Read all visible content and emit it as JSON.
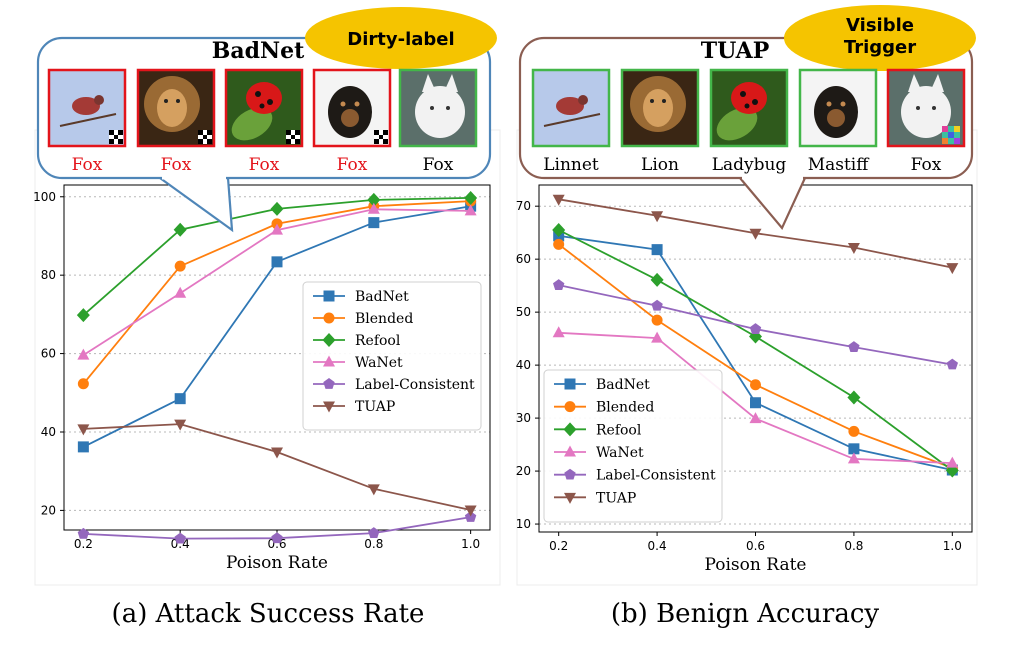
{
  "colors": {
    "BadNet": "#2f77b4",
    "Blended": "#ff7f0e",
    "Refool": "#2ca02c",
    "WaNet": "#e377c2",
    "Label-Consistent": "#9467bd",
    "TUAP": "#8c564b",
    "frame_left": "#4f86b8",
    "frame_right": "#8b5e52",
    "badge": "#f5c400",
    "red": "#e3141b",
    "green": "#43b649"
  },
  "chart_data": [
    {
      "type": "line",
      "title": "",
      "caption": "(a) Attack Success Rate",
      "xlabel": "Poison Rate",
      "ylabel": "",
      "x": [
        0.2,
        0.4,
        0.6,
        0.8,
        1.0
      ],
      "x_ticks": [
        "0.2",
        "0.4",
        "0.6",
        "0.8",
        "1.0"
      ],
      "ylim": [
        15,
        103
      ],
      "y_ticks": [
        20,
        40,
        60,
        80,
        100
      ],
      "grid": "horizontal dotted",
      "legend": "center-right",
      "series": [
        {
          "name": "BadNet",
          "marker": "square",
          "values": [
            36.2,
            48.5,
            83.4,
            93.4,
            97.6
          ]
        },
        {
          "name": "Blended",
          "marker": "circle",
          "values": [
            52.3,
            82.3,
            93.1,
            97.6,
            98.9
          ]
        },
        {
          "name": "Refool",
          "marker": "diamond",
          "values": [
            69.8,
            91.6,
            96.9,
            99.2,
            99.7
          ]
        },
        {
          "name": "WaNet",
          "marker": "triangle-up",
          "values": [
            59.6,
            75.4,
            91.5,
            96.8,
            96.4
          ]
        },
        {
          "name": "Label-Consistent",
          "marker": "pentagon",
          "values": [
            14.0,
            12.8,
            12.9,
            14.2,
            18.3
          ]
        },
        {
          "name": "TUAP",
          "marker": "triangle-down",
          "values": [
            40.8,
            42.0,
            34.9,
            25.5,
            20.1
          ]
        }
      ],
      "inset": {
        "title": "BadNet",
        "badge": "Dirty-label",
        "labels": [
          "Fox",
          "Fox",
          "Fox",
          "Fox",
          "Fox"
        ]
      }
    },
    {
      "type": "line",
      "title": "",
      "caption": "(b) Benign Accuracy",
      "xlabel": "Poison Rate",
      "ylabel": "",
      "x": [
        0.2,
        0.4,
        0.6,
        0.8,
        1.0
      ],
      "x_ticks": [
        "0.2",
        "0.4",
        "0.6",
        "0.8",
        "1.0"
      ],
      "ylim": [
        8.5,
        74
      ],
      "y_ticks": [
        10,
        20,
        30,
        40,
        50,
        60,
        70
      ],
      "grid": "horizontal dotted",
      "legend": "lower-left",
      "series": [
        {
          "name": "BadNet",
          "marker": "square",
          "values": [
            64.4,
            61.8,
            32.9,
            24.2,
            20.2
          ]
        },
        {
          "name": "Blended",
          "marker": "circle",
          "values": [
            62.8,
            48.5,
            36.3,
            27.5,
            20.6
          ]
        },
        {
          "name": "Refool",
          "marker": "diamond",
          "values": [
            65.5,
            56.1,
            45.4,
            33.9,
            20.1
          ]
        },
        {
          "name": "WaNet",
          "marker": "triangle-up",
          "values": [
            46.1,
            45.1,
            29.9,
            22.3,
            21.5
          ]
        },
        {
          "name": "Label-Consistent",
          "marker": "pentagon",
          "values": [
            55.1,
            51.2,
            46.8,
            43.4,
            40.1
          ]
        },
        {
          "name": "TUAP",
          "marker": "triangle-down",
          "values": [
            71.3,
            68.2,
            64.9,
            62.2,
            58.4
          ]
        }
      ],
      "inset": {
        "title": "TUAP",
        "badge": "Visible\nTrigger",
        "labels": [
          "Linnet",
          "Lion",
          "Ladybug",
          "Mastiff",
          "Fox"
        ]
      }
    }
  ]
}
